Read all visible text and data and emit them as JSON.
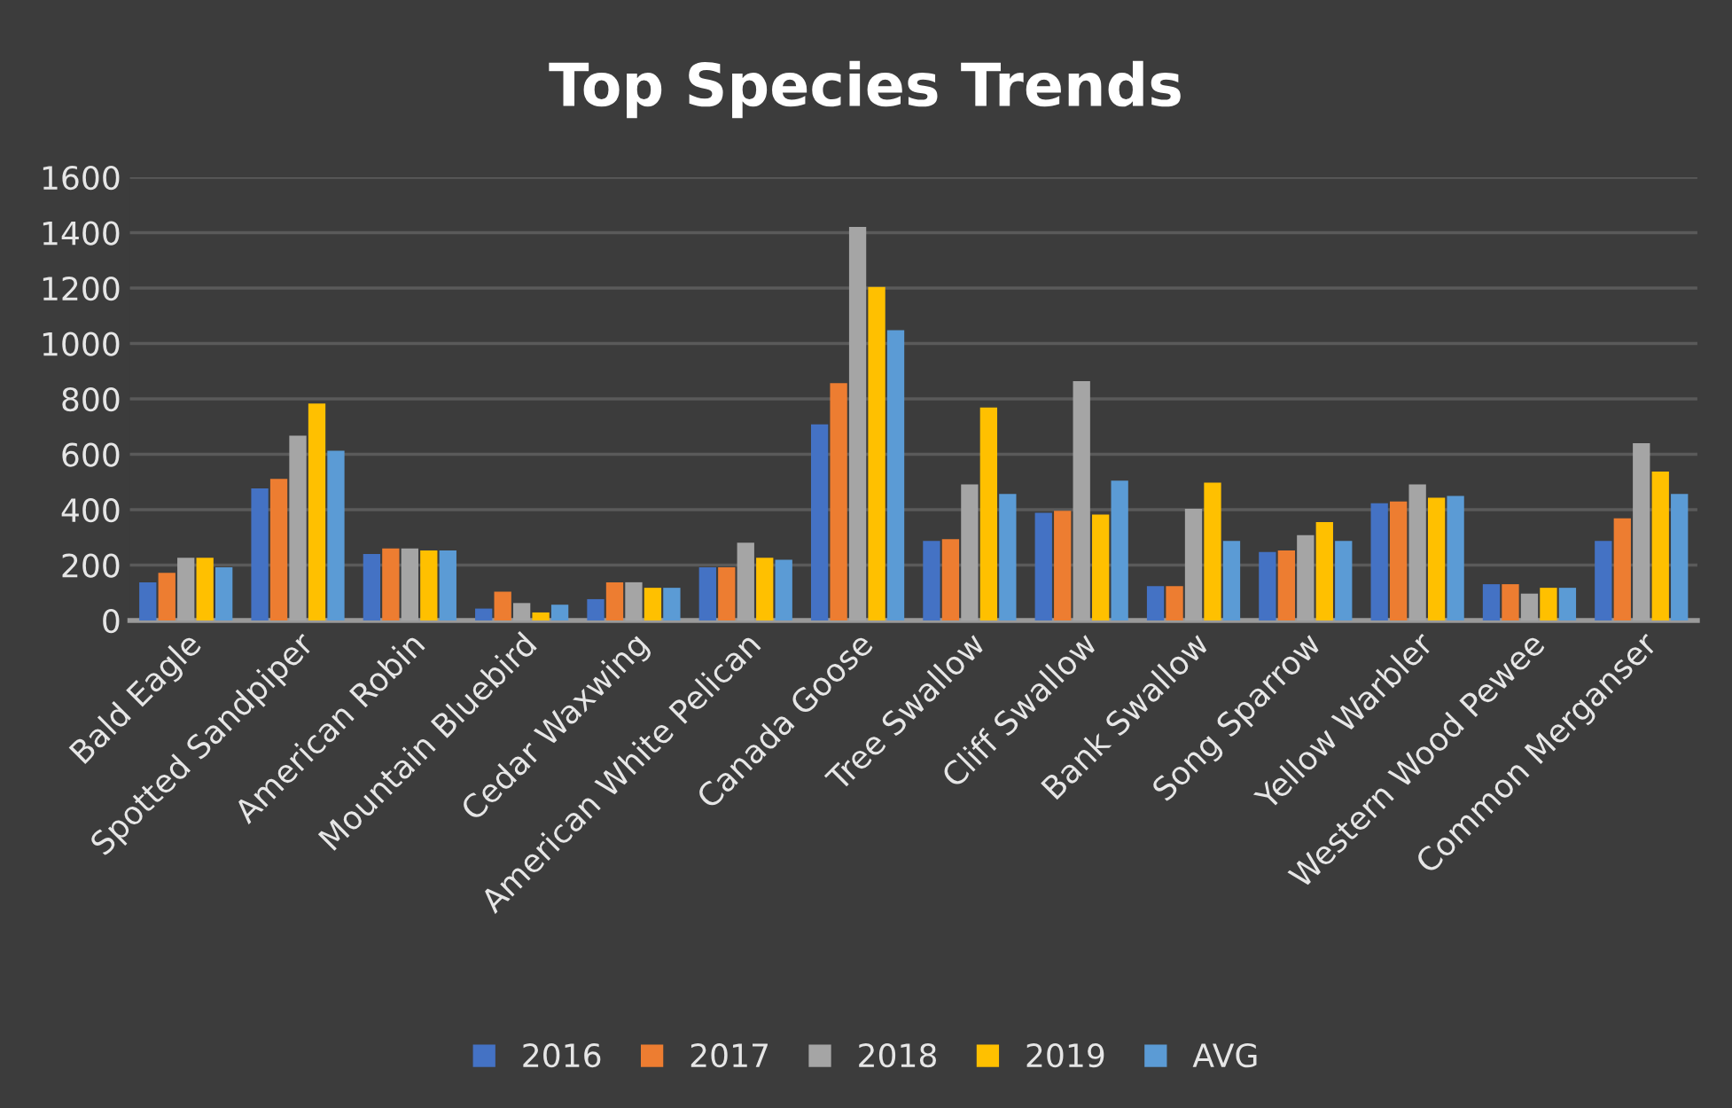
{
  "chart_data": {
    "type": "bar",
    "title": "Top Species Trends",
    "categories": [
      "Bald Eagle",
      "Spotted Sandpiper",
      "American Robin",
      "Mountain Bluebird",
      "Cedar Waxwing",
      "American White Pelican",
      "Canada Goose",
      "Tree Swallow",
      "Cliff Swallow",
      "Bank Swallow",
      "Song Sparrow",
      "Yellow Warbler",
      "Western Wood Pewee",
      "Common Merganser"
    ],
    "series": [
      {
        "name": "2016",
        "color": "#4472c4",
        "values": [
          138,
          477,
          240,
          43,
          77,
          192,
          708,
          287,
          389,
          124,
          247,
          423,
          131,
          287
        ]
      },
      {
        "name": "2017",
        "color": "#ed7d31",
        "values": [
          172,
          511,
          260,
          104,
          138,
          192,
          857,
          294,
          396,
          124,
          253,
          430,
          131,
          369
        ]
      },
      {
        "name": "2018",
        "color": "#a5a5a5",
        "values": [
          226,
          667,
          260,
          63,
          138,
          281,
          1421,
          491,
          864,
          403,
          308,
          491,
          97,
          640
        ]
      },
      {
        "name": "2019",
        "color": "#ffc000",
        "values": [
          226,
          783,
          253,
          29,
          118,
          226,
          1204,
          769,
          382,
          498,
          355,
          443,
          118,
          538
        ]
      },
      {
        "name": "AVG",
        "color": "#5b9bd5",
        "values": [
          192,
          613,
          253,
          57,
          118,
          219,
          1048,
          457,
          505,
          287,
          287,
          450,
          118,
          457
        ]
      }
    ],
    "ylim": [
      0,
      1600
    ],
    "yticks": [
      0,
      200,
      400,
      600,
      800,
      1000,
      1200,
      1400,
      1600
    ],
    "grid": "y",
    "legend": "bottom"
  }
}
